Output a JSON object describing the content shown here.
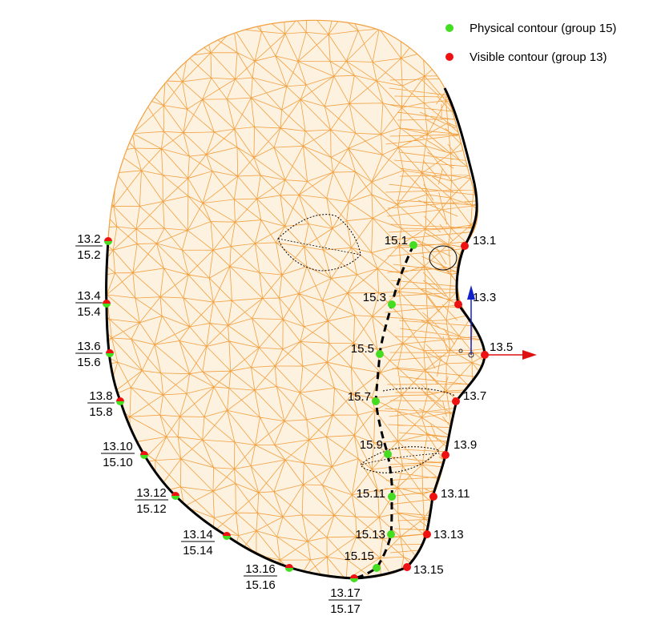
{
  "legend": {
    "physical": {
      "label": "Physical contour (group 15)",
      "color": "#44dd22"
    },
    "visible": {
      "label": "Visible contour (group 13)",
      "color": "#ee1111"
    }
  },
  "colors": {
    "mesh": "#f2a040",
    "contour": "#000000",
    "axis_red": "#dd1111",
    "axis_blue": "#1122cc"
  },
  "visible_labels": [
    "13.1",
    "13.3",
    "13.5",
    "13.7",
    "13.9",
    "13.11",
    "13.13",
    "13.15"
  ],
  "physical_labels": [
    "15.1",
    "15.3",
    "15.5",
    "15.7",
    "15.9",
    "15.11",
    "15.13",
    "15.15"
  ],
  "paired_labels": [
    {
      "top": "13.2",
      "bottom": "15.2"
    },
    {
      "top": "13.4",
      "bottom": "15.4"
    },
    {
      "top": "13.6",
      "bottom": "15.6"
    },
    {
      "top": "13.8",
      "bottom": "15.8"
    },
    {
      "top": "13.10",
      "bottom": "15.10"
    },
    {
      "top": "13.12",
      "bottom": "15.12"
    },
    {
      "top": "13.14",
      "bottom": "15.14"
    },
    {
      "top": "13.16",
      "bottom": "15.16"
    },
    {
      "top": "13.17",
      "bottom": "15.17"
    }
  ]
}
